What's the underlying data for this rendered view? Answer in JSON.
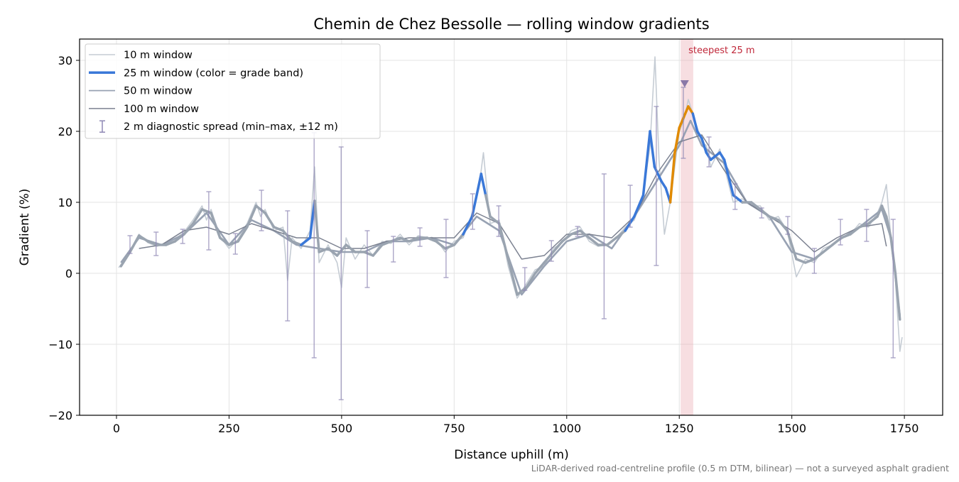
{
  "chart_data": {
    "type": "line",
    "title": "Chemin de Chez Bessolle — rolling window gradients",
    "x_label": "Distance uphill (m)",
    "y_label": "Gradient (%)",
    "footnote": "LiDAR-derived road-centreline profile (0.5 m DTM, bilinear) — not a surveyed asphalt gradient",
    "xlim": [
      -82,
      1835
    ],
    "ylim": [
      -20,
      33
    ],
    "xticks": [
      0,
      250,
      500,
      750,
      1000,
      1250,
      1500,
      1750
    ],
    "yticks": [
      {
        "value": -20,
        "label": "−20"
      },
      {
        "value": -10,
        "label": "−10"
      },
      0,
      10,
      20,
      30
    ],
    "grid": true,
    "legend": "upper left",
    "series": [
      {
        "name": "10 m window",
        "color": "#c5ccd4",
        "x": [
          5,
          30,
          50,
          70,
          90,
          110,
          130,
          150,
          170,
          190,
          200,
          210,
          230,
          250,
          270,
          290,
          310,
          320,
          330,
          350,
          370,
          380,
          390,
          410,
          430,
          440,
          450,
          470,
          490,
          500,
          510,
          530,
          550,
          570,
          590,
          610,
          630,
          650,
          670,
          690,
          710,
          730,
          750,
          770,
          790,
          805,
          815,
          830,
          850,
          870,
          890,
          910,
          930,
          950,
          970,
          990,
          1010,
          1030,
          1050,
          1070,
          1090,
          1110,
          1130,
          1150,
          1170,
          1185,
          1196,
          1205,
          1217,
          1230,
          1250,
          1260,
          1270,
          1280,
          1290,
          1300,
          1310,
          1320,
          1340,
          1350,
          1370,
          1390,
          1410,
          1430,
          1450,
          1470,
          1490,
          1510,
          1530,
          1550,
          1570,
          1590,
          1610,
          1630,
          1650,
          1670,
          1690,
          1700,
          1710,
          1720,
          1730,
          1740,
          1745
        ],
        "values": [
          0.8,
          3,
          5.5,
          4.3,
          3.8,
          4.2,
          4.8,
          5.8,
          7.5,
          9.5,
          7.5,
          9,
          5.2,
          3.5,
          4.8,
          7,
          10,
          8,
          9,
          6,
          6.5,
          -1,
          5,
          3.5,
          6,
          15,
          1.5,
          4,
          1.5,
          -2,
          5,
          2,
          4,
          2.5,
          4.5,
          4.2,
          5.5,
          4,
          5.3,
          5,
          4.8,
          3,
          4.5,
          5,
          8.5,
          12,
          17,
          7,
          7.5,
          1,
          -3.5,
          -1.5,
          0.5,
          1,
          3.5,
          4.3,
          6,
          6.5,
          4.5,
          3.8,
          4,
          5,
          6.5,
          7.5,
          11,
          18,
          30.5,
          16,
          5.5,
          10,
          20,
          21.5,
          24.5,
          22.5,
          20.5,
          18.5,
          18,
          15,
          17.5,
          15,
          10,
          10.5,
          9.5,
          9.5,
          7.5,
          8,
          6,
          -0.5,
          2,
          1.5,
          3.5,
          4,
          5,
          5.5,
          7,
          6.5,
          8.5,
          10,
          12.5,
          5,
          -1,
          -11,
          -9
        ]
      },
      {
        "name": "25 m window (color = grade band)",
        "color": "#3a78d8",
        "x": [
          10,
          30,
          50,
          70,
          90,
          110,
          130,
          150,
          170,
          190,
          210,
          230,
          250,
          270,
          290,
          310,
          330,
          350,
          370,
          390,
          410,
          430,
          440,
          450,
          470,
          490,
          510,
          530,
          550,
          570,
          590,
          610,
          630,
          650,
          670,
          690,
          710,
          730,
          750,
          770,
          790,
          810,
          820,
          830,
          850,
          870,
          890,
          910,
          930,
          950,
          970,
          990,
          1010,
          1030,
          1050,
          1070,
          1090,
          1110,
          1130,
          1150,
          1170,
          1185,
          1195,
          1210,
          1220,
          1230,
          1240,
          1250,
          1260,
          1270,
          1280,
          1290,
          1300,
          1310,
          1320,
          1340,
          1350,
          1370,
          1390,
          1410,
          1430,
          1450,
          1470,
          1490,
          1510,
          1530,
          1550,
          1570,
          1590,
          1610,
          1630,
          1650,
          1670,
          1690,
          1700,
          1710,
          1720,
          1730,
          1740
        ],
        "values": [
          1,
          3,
          5.3,
          4.5,
          4,
          4,
          4.5,
          5.5,
          7,
          9,
          8.5,
          5,
          4,
          4.5,
          6.5,
          9.5,
          8.5,
          6.5,
          6,
          4.5,
          4,
          5,
          10.2,
          3,
          3.5,
          2.5,
          4,
          3,
          3,
          2.5,
          4,
          4.5,
          5,
          4.5,
          5,
          5,
          4.5,
          3.5,
          4,
          5.5,
          8,
          14,
          11,
          8,
          7,
          2,
          -3,
          -2,
          0,
          1.5,
          3,
          4.5,
          5.5,
          6,
          5,
          4,
          4,
          5,
          6,
          8,
          11,
          20,
          15,
          13,
          12,
          10,
          17,
          20.5,
          22,
          23.5,
          22.5,
          20,
          19,
          17,
          16,
          17,
          16,
          11,
          10,
          10,
          9,
          8,
          7.5,
          6,
          2,
          1.5,
          2,
          3,
          4,
          5,
          5.5,
          6.5,
          7,
          8,
          9.5,
          8,
          5,
          0,
          -6.5
        ],
        "segment_colors": [
          "#9aa4b0",
          "#9aa4b0",
          "#9aa4b0",
          "#9aa4b0",
          "#9aa4b0",
          "#9aa4b0",
          "#9aa4b0",
          "#9aa4b0",
          "#9aa4b0",
          "#9aa4b0",
          "#9aa4b0",
          "#9aa4b0",
          "#9aa4b0",
          "#9aa4b0",
          "#9aa4b0",
          "#9aa4b0",
          "#9aa4b0",
          "#9aa4b0",
          "#9aa4b0",
          "#9aa4b0",
          "#9aa4b0",
          "#3a78d8",
          "#3a78d8",
          "#9aa4b0",
          "#9aa4b0",
          "#9aa4b0",
          "#9aa4b0",
          "#9aa4b0",
          "#9aa4b0",
          "#9aa4b0",
          "#9aa4b0",
          "#9aa4b0",
          "#9aa4b0",
          "#9aa4b0",
          "#9aa4b0",
          "#9aa4b0",
          "#9aa4b0",
          "#9aa4b0",
          "#9aa4b0",
          "#9aa4b0",
          "#3a78d8",
          "#3a78d8",
          "#3a78d8",
          "#9aa4b0",
          "#9aa4b0",
          "#9aa4b0",
          "#9aa4b0",
          "#9aa4b0",
          "#9aa4b0",
          "#9aa4b0",
          "#9aa4b0",
          "#9aa4b0",
          "#9aa4b0",
          "#9aa4b0",
          "#9aa4b0",
          "#9aa4b0",
          "#9aa4b0",
          "#9aa4b0",
          "#9aa4b0",
          "#3a78d8",
          "#3a78d8",
          "#3a78d8",
          "#3a78d8",
          "#3a78d8",
          "#3a78d8",
          "#3a78d8",
          "#e08a00",
          "#e08a00",
          "#e08a00",
          "#e08a00",
          "#e08a00",
          "#3a78d8",
          "#3a78d8",
          "#3a78d8",
          "#3a78d8",
          "#3a78d8",
          "#3a78d8",
          "#3a78d8",
          "#3a78d8",
          "#9aa4b0",
          "#9aa4b0",
          "#9aa4b0",
          "#9aa4b0",
          "#9aa4b0",
          "#9aa4b0",
          "#9aa4b0",
          "#9aa4b0",
          "#9aa4b0",
          "#9aa4b0",
          "#9aa4b0",
          "#9aa4b0",
          "#9aa4b0",
          "#9aa4b0",
          "#9aa4b0",
          "#9aa4b0",
          "#9aa4b0",
          "#9aa4b0",
          "#9aa4b0",
          "#9aa4b0"
        ]
      },
      {
        "name": "50 m window",
        "color": "#98a2b3",
        "x": [
          10,
          50,
          100,
          150,
          200,
          250,
          300,
          350,
          400,
          450,
          500,
          550,
          600,
          650,
          700,
          750,
          800,
          850,
          900,
          950,
          1000,
          1050,
          1100,
          1150,
          1200,
          1250,
          1275,
          1300,
          1350,
          1400,
          1450,
          1500,
          1550,
          1600,
          1650,
          1700,
          1720,
          1740
        ],
        "values": [
          1.5,
          5,
          4,
          5.5,
          8.5,
          4,
          7.5,
          6,
          4,
          3.5,
          3,
          3,
          4.5,
          4.5,
          5,
          4,
          8,
          6,
          -3,
          1,
          4.5,
          5.5,
          3.5,
          8,
          13,
          18,
          21.5,
          18,
          15.5,
          10,
          8,
          3,
          2,
          4.5,
          6.5,
          9,
          5,
          -6
        ]
      },
      {
        "name": "100 m window",
        "color": "#7b8190",
        "x": [
          50,
          100,
          150,
          200,
          250,
          300,
          350,
          400,
          450,
          500,
          550,
          600,
          650,
          700,
          750,
          800,
          850,
          900,
          950,
          1000,
          1050,
          1100,
          1150,
          1200,
          1250,
          1300,
          1350,
          1400,
          1450,
          1500,
          1550,
          1600,
          1650,
          1700,
          1710
        ],
        "values": [
          3.5,
          4,
          6,
          6.5,
          5.5,
          7,
          6,
          5,
          5,
          3.5,
          3.5,
          4.5,
          5,
          5,
          5,
          8.5,
          7,
          2,
          2.5,
          5.5,
          5.5,
          5,
          8,
          14,
          18.5,
          19.5,
          14.5,
          10,
          8,
          6,
          3,
          5,
          6.5,
          7,
          3.8
        ]
      }
    ],
    "spread": {
      "name": "2 m diagnostic spread (min–max, ±12 m)",
      "color": "#8f88b5",
      "x": [
        30,
        88,
        147,
        205,
        264,
        322,
        380,
        439,
        499,
        557,
        615,
        674,
        732,
        791,
        849,
        907,
        966,
        1024,
        1083,
        1141,
        1199,
        1259,
        1316,
        1374,
        1433,
        1491,
        1550,
        1608,
        1666,
        1725
      ],
      "low": [
        2.8,
        2.5,
        4.2,
        3.3,
        2.7,
        6,
        -6.7,
        -11.9,
        -17.8,
        -2,
        1.6,
        3.8,
        -0.6,
        6.2,
        5.2,
        -2.4,
        1.7,
        5.2,
        -6.4,
        6.5,
        1.1,
        16.2,
        15,
        9,
        7.8,
        5.5,
        0,
        4,
        4.5,
        -11.9
      ],
      "high": [
        5.3,
        5.8,
        6.2,
        11.5,
        5.6,
        11.7,
        8.8,
        19.8,
        17.8,
        6,
        5.2,
        6.4,
        7.6,
        11.2,
        9.5,
        0.8,
        4.6,
        6.6,
        14,
        12.4,
        23.5,
        26.2,
        19.2,
        12.6,
        9.2,
        8,
        3.5,
        7.6,
        9,
        7.6
      ]
    },
    "highlight": {
      "xlim": [
        1253,
        1281
      ],
      "label": "steepest 25 m",
      "color": "#e8a0a8",
      "marker": {
        "x": 1262,
        "y": 26.7,
        "color": "#8a78a8"
      }
    }
  }
}
